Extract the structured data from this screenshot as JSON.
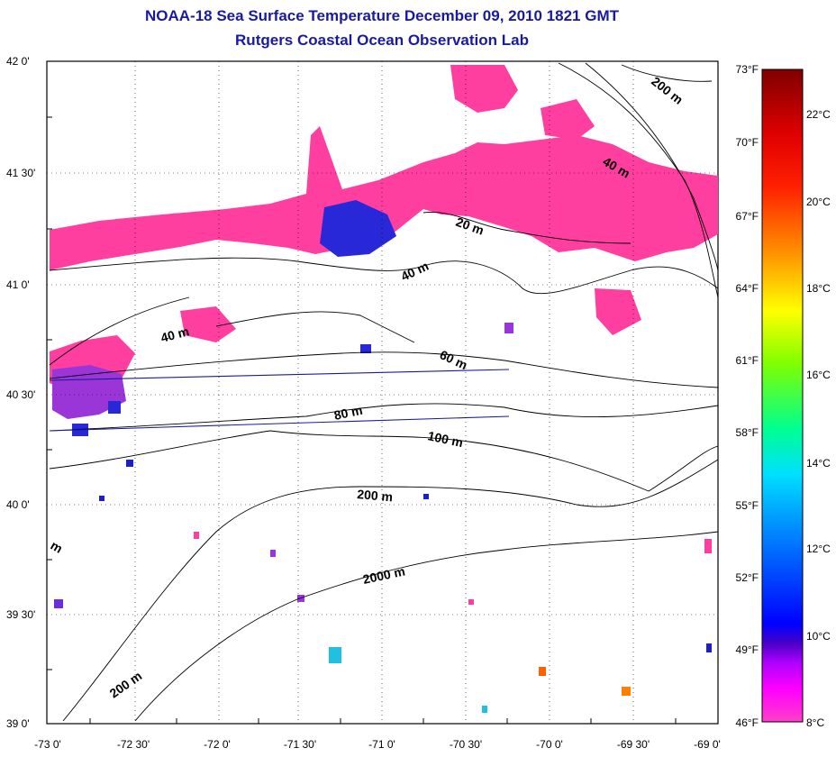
{
  "title": "NOAA-18 Sea Surface Temperature December 09, 2010 1821 GMT",
  "subtitle": "Rutgers Coastal Ocean Observation Lab",
  "lat_labels": [
    "42 0'",
    "41 30'",
    "41 0'",
    "40 30'",
    "40 0'",
    "39 30'",
    "39 0'"
  ],
  "lon_labels": [
    "-73 0'",
    "-72 30'",
    "-72 0'",
    "-71 30'",
    "-71 0'",
    "-70 30'",
    "-70 0'",
    "-69 30'",
    "-69 0'"
  ],
  "fahrenheit_labels": [
    "73°F",
    "70°F",
    "67°F",
    "64°F",
    "61°F",
    "58°F",
    "55°F",
    "52°F",
    "49°F",
    "46°F"
  ],
  "celsius_labels": [
    "22°C",
    "20°C",
    "18°C",
    "16°C",
    "14°C",
    "12°C",
    "10°C",
    "8°C"
  ],
  "contour_labels": {
    "c20": "20 m",
    "c40a": "40 m",
    "c40b": "40 m",
    "c40c": "40 m",
    "c60": "60 m",
    "c80": "80 m",
    "c100": "100 m",
    "c200a": "200 m",
    "c200b": "200 m",
    "c200c": "200 m",
    "c2000": "2000 m",
    "cm": "m"
  },
  "colors": {
    "title": "#1a1aa0",
    "sst_cold": "#ff3fa0",
    "sst_cool": "#8a2be2",
    "sst_blue": "#1e1ed2"
  }
}
